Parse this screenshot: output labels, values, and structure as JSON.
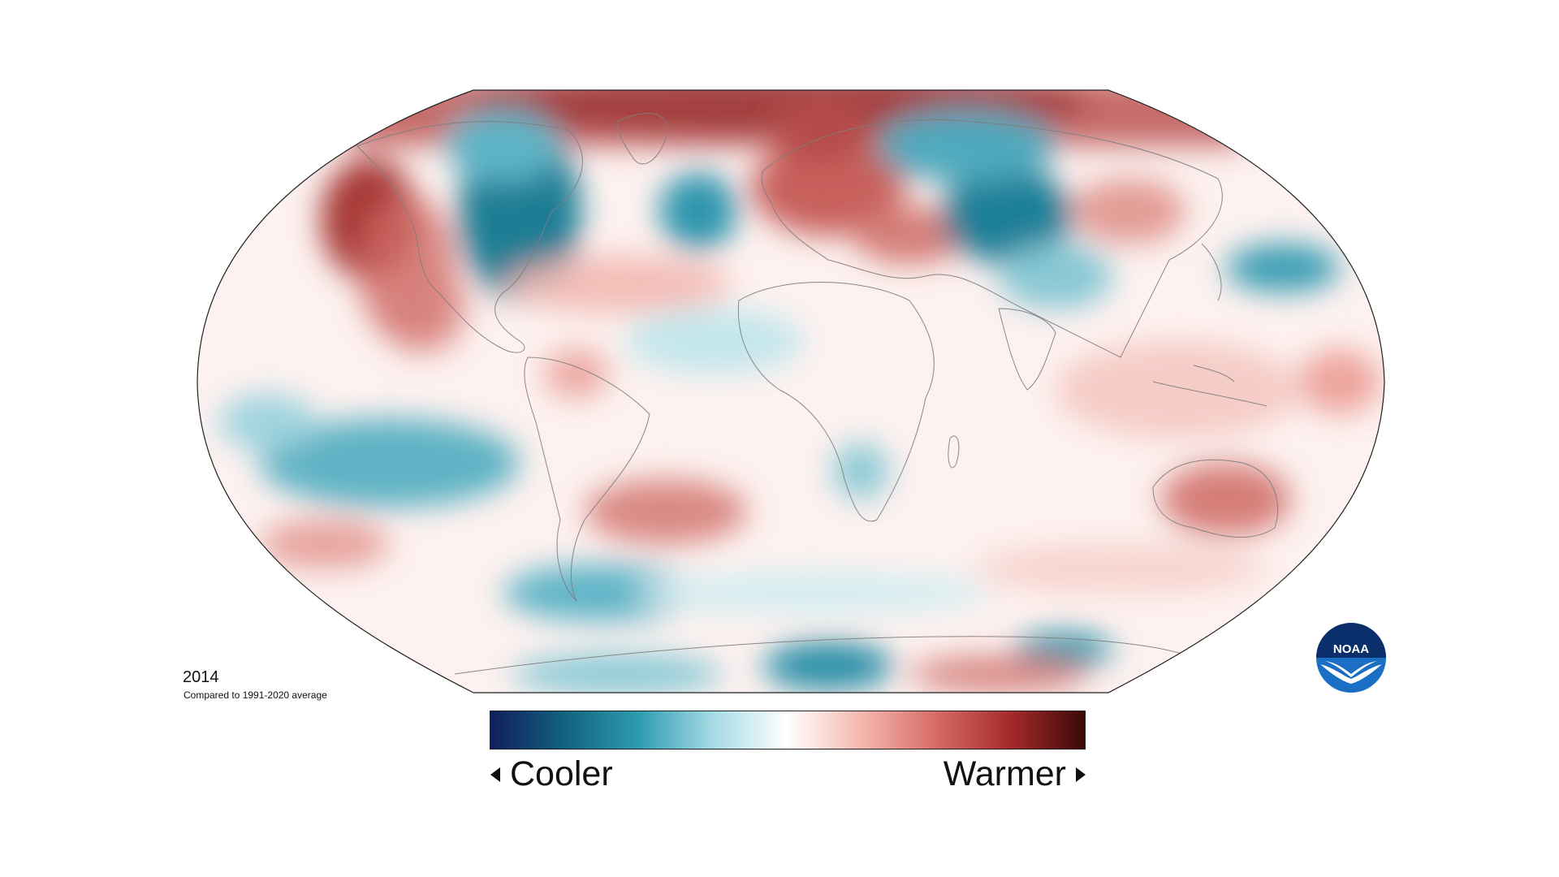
{
  "map": {
    "year": "2014",
    "comparison": "Compared to 1991-2020 average",
    "projection": "robinson",
    "ocean_background": "#ffffff",
    "boundary_color": "#777777"
  },
  "legend": {
    "cooler_label": "Cooler",
    "warmer_label": "Warmer",
    "colors": [
      "#0f1f5c",
      "#12627f",
      "#2c9db0",
      "#a6dbe4",
      "#ffffff",
      "#f3b7ae",
      "#d66b66",
      "#a52a2a",
      "#3c0707"
    ]
  },
  "logo": {
    "text": "NOAA",
    "colors": [
      "#0a2f6b",
      "#1a6fc4",
      "#ffffff"
    ]
  }
}
